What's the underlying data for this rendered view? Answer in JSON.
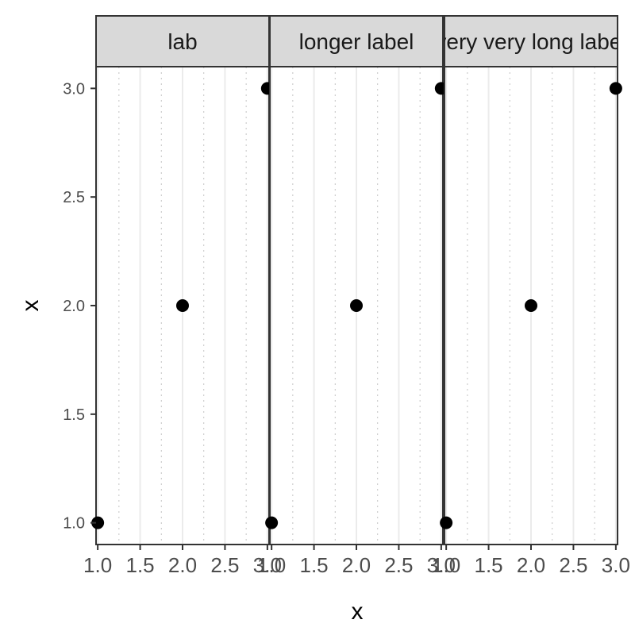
{
  "chart_data": {
    "type": "scatter",
    "facet_wrap": true,
    "xlabel": "x",
    "ylabel": "x",
    "xlim": [
      0.98,
      3.02
    ],
    "ylim": [
      0.9,
      3.1
    ],
    "x_ticks": [
      1.0,
      1.5,
      2.0,
      2.5,
      3.0
    ],
    "x_tick_labels": [
      "1.0",
      "1.5",
      "2.0",
      "2.5",
      "3.0"
    ],
    "y_ticks": [
      1.0,
      1.5,
      2.0,
      2.5,
      3.0
    ],
    "y_tick_labels": [
      "1.0",
      "1.5",
      "2.0",
      "2.5",
      "3.0"
    ],
    "grid": true,
    "point_color": "#000000",
    "panels": [
      {
        "label": "lab",
        "points": [
          {
            "x": 1,
            "y": 1
          },
          {
            "x": 2,
            "y": 2
          },
          {
            "x": 3,
            "y": 3
          }
        ]
      },
      {
        "label": "longer label",
        "points": [
          {
            "x": 1,
            "y": 1
          },
          {
            "x": 2,
            "y": 2
          },
          {
            "x": 3,
            "y": 3
          }
        ]
      },
      {
        "label": "very very long label",
        "points": [
          {
            "x": 1,
            "y": 1
          },
          {
            "x": 2,
            "y": 2
          },
          {
            "x": 3,
            "y": 3
          }
        ]
      }
    ]
  }
}
